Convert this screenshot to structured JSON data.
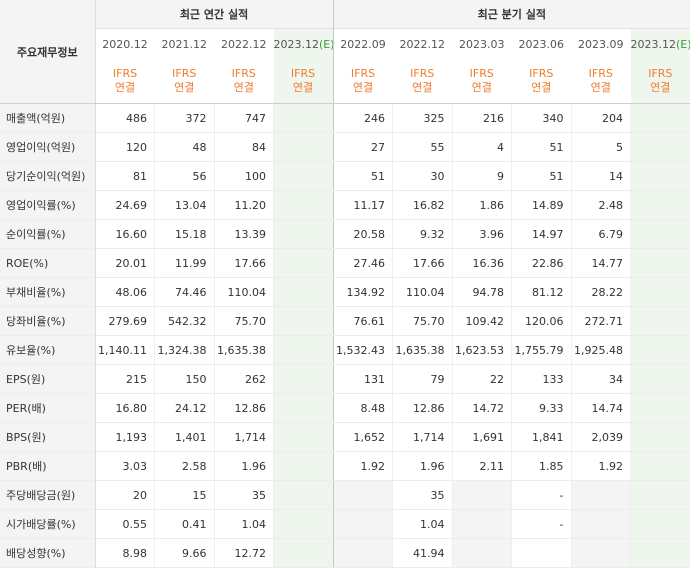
{
  "header": {
    "label_head": "주요재무정보",
    "annual_title": "최근 연간 실적",
    "quarter_title": "최근 분기 실적"
  },
  "periods": [
    {
      "label": "2020.12",
      "est": false
    },
    {
      "label": "2021.12",
      "est": false
    },
    {
      "label": "2022.12",
      "est": false
    },
    {
      "label": "2023.12",
      "est_suffix": "(E)",
      "est": true
    },
    {
      "label": "2022.09",
      "est": false
    },
    {
      "label": "2022.12",
      "est": false
    },
    {
      "label": "2023.03",
      "est": false
    },
    {
      "label": "2023.06",
      "est": false
    },
    {
      "label": "2023.09",
      "est": false
    },
    {
      "label": "2023.12",
      "est_suffix": "(E)",
      "est": true
    }
  ],
  "basis": {
    "line1": "IFRS",
    "line2": "연결"
  },
  "rows": [
    {
      "label": "매출액(억원)",
      "values": [
        "486",
        "372",
        "747",
        "",
        "246",
        "325",
        "216",
        "340",
        "204",
        ""
      ]
    },
    {
      "label": "영업이익(억원)",
      "values": [
        "120",
        "48",
        "84",
        "",
        "27",
        "55",
        "4",
        "51",
        "5",
        ""
      ]
    },
    {
      "label": "당기순이익(억원)",
      "values": [
        "81",
        "56",
        "100",
        "",
        "51",
        "30",
        "9",
        "51",
        "14",
        ""
      ]
    },
    {
      "label": "영업이익률(%)",
      "values": [
        "24.69",
        "13.04",
        "11.20",
        "",
        "11.17",
        "16.82",
        "1.86",
        "14.89",
        "2.48",
        ""
      ]
    },
    {
      "label": "순이익률(%)",
      "values": [
        "16.60",
        "15.18",
        "13.39",
        "",
        "20.58",
        "9.32",
        "3.96",
        "14.97",
        "6.79",
        ""
      ]
    },
    {
      "label": "ROE(%)",
      "values": [
        "20.01",
        "11.99",
        "17.66",
        "",
        "27.46",
        "17.66",
        "16.36",
        "22.86",
        "14.77",
        ""
      ]
    },
    {
      "label": "부채비율(%)",
      "values": [
        "48.06",
        "74.46",
        "110.04",
        "",
        "134.92",
        "110.04",
        "94.78",
        "81.12",
        "28.22",
        ""
      ]
    },
    {
      "label": "당좌비율(%)",
      "values": [
        "279.69",
        "542.32",
        "75.70",
        "",
        "76.61",
        "75.70",
        "109.42",
        "120.06",
        "272.71",
        ""
      ]
    },
    {
      "label": "유보율(%)",
      "values": [
        "1,140.11",
        "1,324.38",
        "1,635.38",
        "",
        "1,532.43",
        "1,635.38",
        "1,623.53",
        "1,755.79",
        "1,925.48",
        ""
      ]
    },
    {
      "label": "EPS(원)",
      "values": [
        "215",
        "150",
        "262",
        "",
        "131",
        "79",
        "22",
        "133",
        "34",
        ""
      ]
    },
    {
      "label": "PER(배)",
      "values": [
        "16.80",
        "24.12",
        "12.86",
        "",
        "8.48",
        "12.86",
        "14.72",
        "9.33",
        "14.74",
        ""
      ]
    },
    {
      "label": "BPS(원)",
      "values": [
        "1,193",
        "1,401",
        "1,714",
        "",
        "1,652",
        "1,714",
        "1,691",
        "1,841",
        "2,039",
        ""
      ]
    },
    {
      "label": "PBR(배)",
      "values": [
        "3.03",
        "2.58",
        "1.96",
        "",
        "1.92",
        "1.96",
        "2.11",
        "1.85",
        "1.92",
        ""
      ]
    },
    {
      "label": "주당배당금(원)",
      "values": [
        "20",
        "15",
        "35",
        "",
        "",
        "35",
        "",
        "-",
        "",
        ""
      ]
    },
    {
      "label": "시가배당률(%)",
      "values": [
        "0.55",
        "0.41",
        "1.04",
        "",
        "",
        "1.04",
        "",
        "-",
        "",
        ""
      ]
    },
    {
      "label": "배당성향(%)",
      "values": [
        "8.98",
        "9.66",
        "12.72",
        "",
        "",
        "41.94",
        "",
        "",
        "",
        ""
      ]
    }
  ],
  "group_starts": [
    0,
    3,
    6,
    9,
    13
  ],
  "na_cells": {
    "13": [
      4,
      6,
      8
    ],
    "14": [
      4,
      6,
      8
    ],
    "15": [
      4,
      6,
      8
    ]
  }
}
